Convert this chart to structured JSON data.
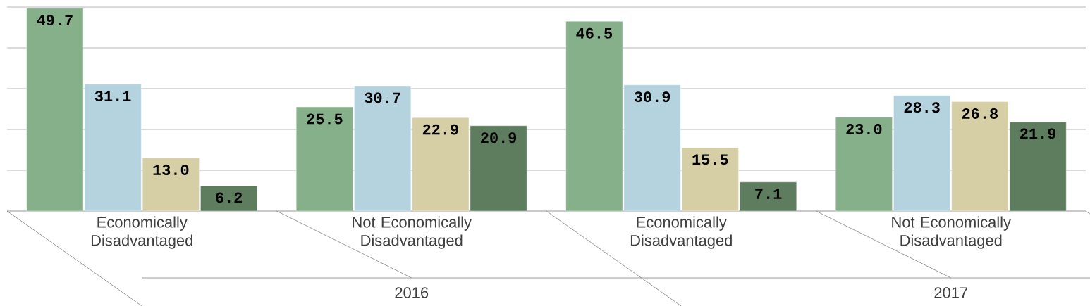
{
  "chart_data": {
    "type": "bar",
    "categories": [
      "Economically Disadvantaged",
      "Not Economically Disadvantaged",
      "Economically Disadvantaged",
      "Not Economically Disadvantaged"
    ],
    "series": [
      {
        "color": "#85b08a",
        "values": [
          49.7,
          25.5,
          46.5,
          23.0
        ],
        "value_labels": [
          "49.7",
          "25.5",
          "46.5",
          "23.0"
        ]
      },
      {
        "color": "#b4d3de",
        "values": [
          31.1,
          30.7,
          30.9,
          28.3
        ],
        "value_labels": [
          "31.1",
          "30.7",
          "30.9",
          "28.3"
        ]
      },
      {
        "color": "#d6cfa5",
        "values": [
          13.0,
          22.9,
          15.5,
          26.8
        ],
        "value_labels": [
          "13.0",
          "22.9",
          "15.5",
          "26.8"
        ]
      },
      {
        "color": "#5e7d5f",
        "values": [
          6.2,
          20.9,
          7.1,
          21.9
        ],
        "value_labels": [
          "6.2",
          "20.9",
          "7.1",
          "21.9"
        ]
      }
    ],
    "annotations": [
      "2016",
      "2017"
    ],
    "ylim": [
      0,
      50
    ],
    "grid": "y",
    "tick_labels": "x"
  }
}
